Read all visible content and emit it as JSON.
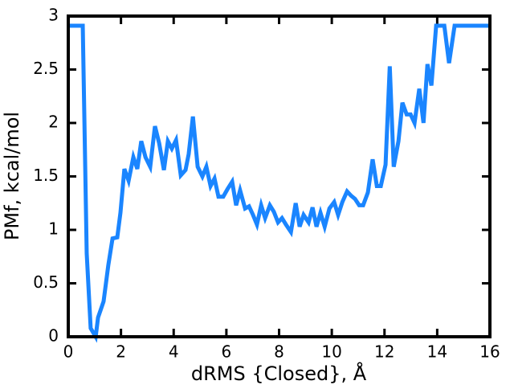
{
  "chart_data": {
    "type": "line",
    "xlabel": "dRMS  {Closed}, Å",
    "ylabel": "PMf, kcal/mol",
    "x": [
      0,
      0.55,
      0.7,
      0.85,
      1.04,
      1.13,
      1.34,
      1.52,
      1.68,
      1.86,
      1.98,
      2.13,
      2.29,
      2.47,
      2.62,
      2.77,
      2.93,
      3.11,
      3.29,
      3.45,
      3.63,
      3.78,
      3.93,
      4.09,
      4.27,
      4.45,
      4.57,
      4.73,
      4.91,
      5.09,
      5.24,
      5.4,
      5.55,
      5.7,
      5.88,
      6.04,
      6.22,
      6.37,
      6.52,
      6.71,
      6.86,
      7.01,
      7.16,
      7.32,
      7.47,
      7.65,
      7.8,
      7.96,
      8.11,
      8.26,
      8.45,
      8.63,
      8.78,
      8.93,
      9.12,
      9.27,
      9.42,
      9.57,
      9.73,
      9.91,
      10.09,
      10.24,
      10.4,
      10.58,
      10.73,
      10.88,
      11.04,
      11.19,
      11.37,
      11.55,
      11.71,
      11.86,
      12.04,
      12.2,
      12.35,
      12.53,
      12.68,
      12.84,
      12.99,
      13.14,
      13.32,
      13.48,
      13.63,
      13.78,
      13.96,
      14.27,
      14.45,
      14.66,
      16
    ],
    "series": [
      {
        "color": "#1a85ff",
        "values": [
          2.91,
          2.91,
          0.78,
          0.08,
          0,
          0.18,
          0.33,
          0.67,
          0.92,
          0.93,
          1.16,
          1.57,
          1.46,
          1.68,
          1.57,
          1.83,
          1.68,
          1.59,
          1.97,
          1.81,
          1.56,
          1.83,
          1.76,
          1.84,
          1.51,
          1.56,
          1.71,
          2.06,
          1.59,
          1.5,
          1.59,
          1.41,
          1.48,
          1.31,
          1.31,
          1.38,
          1.45,
          1.23,
          1.37,
          1.2,
          1.22,
          1.14,
          1.05,
          1.23,
          1.11,
          1.23,
          1.17,
          1.07,
          1.11,
          1.05,
          0.98,
          1.25,
          1.03,
          1.14,
          1.07,
          1.21,
          1.03,
          1.16,
          1.03,
          1.2,
          1.26,
          1.14,
          1.26,
          1.36,
          1.32,
          1.29,
          1.23,
          1.23,
          1.35,
          1.66,
          1.41,
          1.41,
          1.61,
          2.53,
          1.59,
          1.83,
          2.19,
          2.08,
          2.08,
          2.0,
          2.32,
          2.0,
          2.55,
          2.35,
          2.91,
          2.91,
          2.56,
          2.91,
          2.91
        ]
      }
    ],
    "xlim": [
      0,
      16
    ],
    "xticks": [
      0,
      2,
      4,
      6,
      8,
      10,
      12,
      14,
      16
    ],
    "ylim": [
      0,
      3
    ],
    "yticks": [
      0,
      0.5,
      1,
      1.5,
      2,
      2.5,
      3
    ]
  }
}
